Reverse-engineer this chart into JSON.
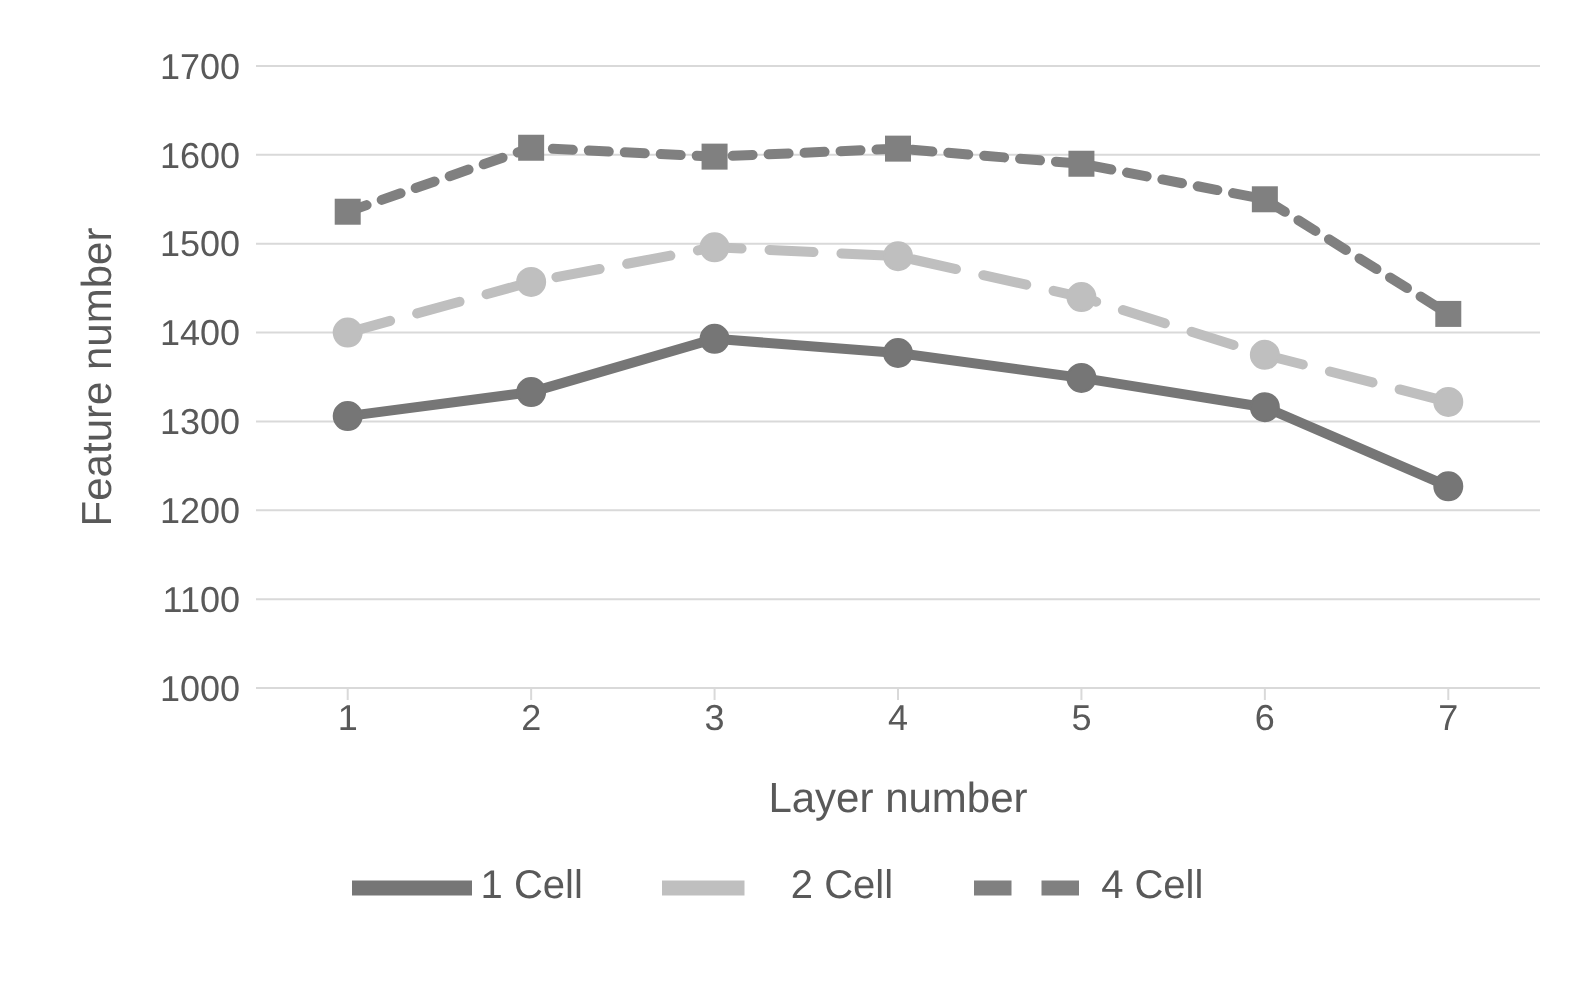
{
  "chart_data": {
    "type": "line",
    "xlabel": "Layer number",
    "ylabel": "Feature number",
    "categories": [
      "1",
      "2",
      "3",
      "4",
      "5",
      "6",
      "7"
    ],
    "series": [
      {
        "name": "1 Cell",
        "color": "#767676",
        "values": [
          1306,
          1333,
          1393,
          1377,
          1349,
          1316,
          1227
        ],
        "line_style": "solid",
        "marker": "circle"
      },
      {
        "name": "2 Cell",
        "color": "#bfbfbf",
        "values": [
          1400,
          1457,
          1496,
          1486,
          1440,
          1375,
          1322
        ],
        "line_style": "dashed",
        "marker": "circle"
      },
      {
        "name": "4 Cell",
        "color": "#808080",
        "values": [
          1536,
          1608,
          1598,
          1607,
          1590,
          1550,
          1421
        ],
        "line_style": "dotted",
        "marker": "square"
      }
    ],
    "ylim": [
      1000,
      1700
    ],
    "yticks": [
      1000,
      1100,
      1200,
      1300,
      1400,
      1500,
      1600,
      1700
    ],
    "grid": "y",
    "legend": "bottom"
  }
}
